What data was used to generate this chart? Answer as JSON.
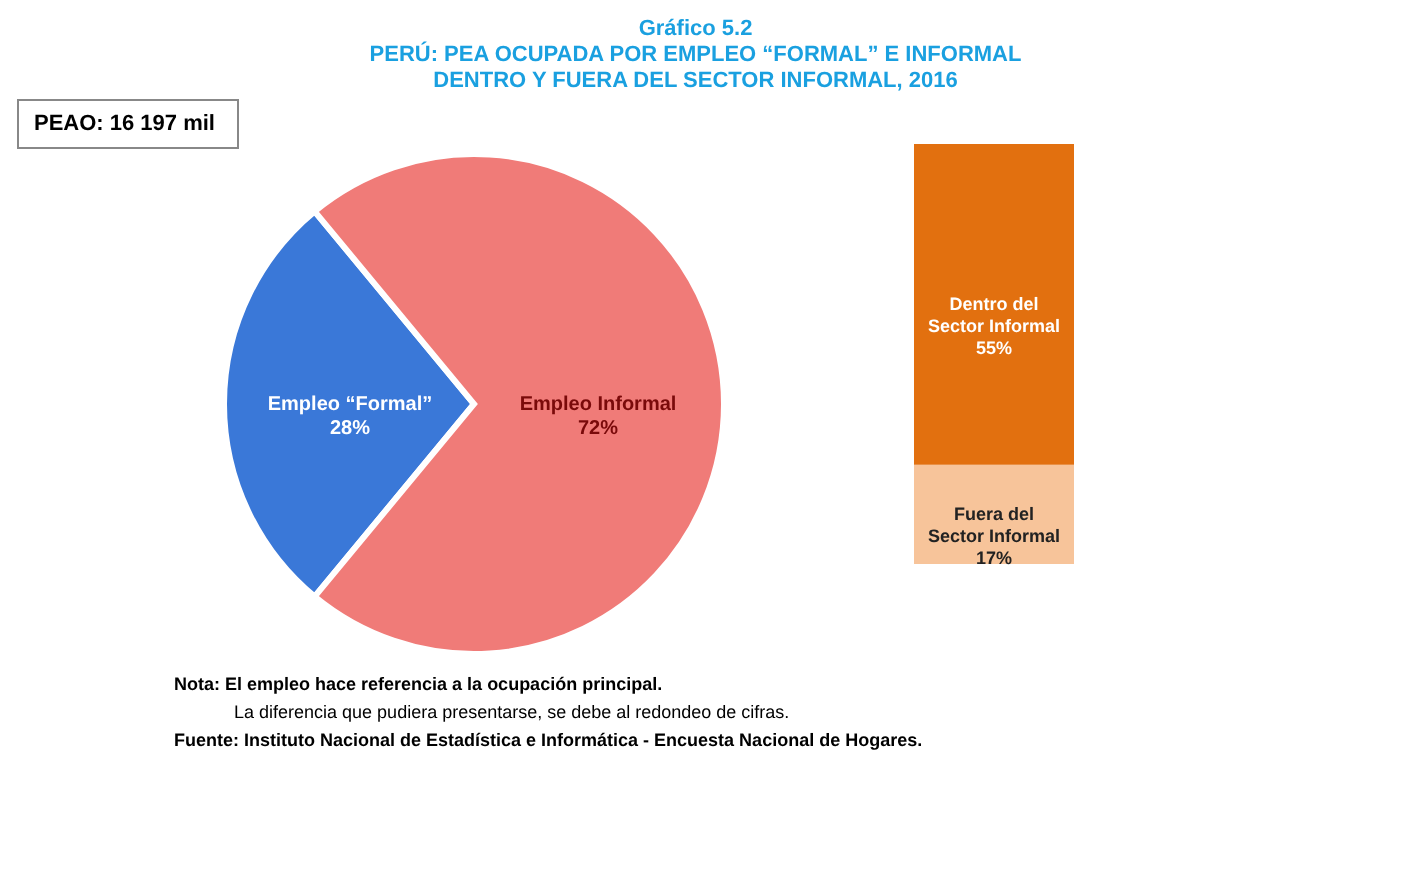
{
  "chart_data": [
    {
      "type": "pie",
      "title": "Gráfico 5.2\nPERÚ: PEA OCUPADA POR EMPLEO “FORMAL” E INFORMAL\nDENTRO Y FUERA DEL SECTOR INFORMAL, 2016",
      "categories": [
        "Empleo “Formal”",
        "Empleo Informal"
      ],
      "values": [
        28,
        72
      ],
      "value_labels": [
        "28%",
        "72%"
      ],
      "colors": [
        "#3a78d8",
        "#f07b78"
      ],
      "annotations": [
        "PEAO: 16 197 mil",
        "Nota: El empleo hace referencia a la ocupación principal.",
        "La diferencia que pudiera presentarse, se debe al redondeo de cifras.",
        "Fuente: Instituto Nacional de Estadística e Informática - Encuesta Nacional de Hogares."
      ]
    },
    {
      "type": "bar",
      "stacked": true,
      "categories": [
        null
      ],
      "series": [
        {
          "name": "Fuera del Sector Informal",
          "color": "#f7c49a",
          "values": [
            17
          ],
          "value_labels": [
            "17%"
          ]
        },
        {
          "name": "Dentro del Sector Informal",
          "color": "#e2700f",
          "values": [
            55
          ],
          "value_labels": [
            "55%"
          ]
        }
      ]
    }
  ]
}
